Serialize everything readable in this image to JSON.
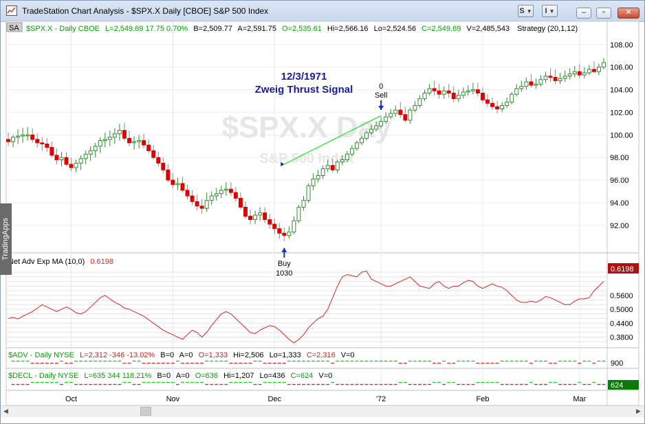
{
  "window": {
    "title": "TradeStation Chart Analysis - $SPX.X Daily [CBOE] S&P 500 Index",
    "btn_s": "S",
    "btn_i": "I",
    "minimize": "–",
    "restore": "▫",
    "close": "✕"
  },
  "side_tab": "TradingApps",
  "price_header": {
    "sa": "SA",
    "symbol": "$SPX.X - Daily  CBOE",
    "last": "L=2,549.69  17.75  0.70%",
    "bid": "B=2,509.77",
    "ask": "A=2,591.75",
    "open": "O=2,535.61",
    "high": "Hi=2,566.16",
    "low": "Lo=2,524.56",
    "close": "C=2,549.69",
    "volume": "V=2,485,543",
    "strategy": "Strategy (20,1,12)"
  },
  "watermark": {
    "symbol": "$SPX.X Day",
    "name": "S&P 500 Index"
  },
  "annotations": {
    "date": "12/3/1971",
    "signal": "Zweig Thrust Signal",
    "buy_label": "Buy",
    "buy_qty": "1030",
    "sell_label": "Sell",
    "sell_qty": "0"
  },
  "indicator_header": {
    "name": "Net Adv Exp MA (10,0)",
    "value": "0.6198"
  },
  "adv_header": {
    "symbol": "$ADV - Daily  NYSE",
    "last": "L=2,312  -346  -13.02%",
    "bid": "B=0",
    "ask": "A=0",
    "open": "O=1,333",
    "high": "Hi=2,506",
    "low": "Lo=1,333",
    "close": "C=2,316",
    "volume": "V=0"
  },
  "decl_header": {
    "symbol": "$DECL - Daily  NYSE",
    "last": "L=635  344  118.21%",
    "bid": "B=0",
    "ask": "A=0",
    "open": "O=636",
    "high": "Hi=1,207",
    "low": "Lo=436",
    "close": "C=624",
    "volume": "V=0"
  },
  "right_labels": {
    "indicator_last": "0.6198",
    "adv_axis": "900",
    "decl_last": "624"
  },
  "x_axis_labels": [
    "Oct",
    "Nov",
    "Dec",
    "'72",
    "Feb",
    "Mar"
  ],
  "colors": {
    "up_bar": "#2e8b2e",
    "down_bar": "#e00000",
    "indicator_line": "#e02020",
    "trade_line": "#33dd33",
    "annotation_text": "#1a1aa0",
    "symbol_green": "#00a000",
    "adv_green": "#22cc22",
    "decl_red": "#cc3333"
  },
  "chart_data": [
    {
      "type": "candlestick",
      "series": [
        {
          "name": "$SPX.X - Daily  CBOE"
        }
      ],
      "x": [
        "1971-09-14",
        "1971-09-15",
        "1971-09-16",
        "1971-09-17",
        "1971-09-20",
        "1971-09-21",
        "1971-09-22",
        "1971-09-23",
        "1971-09-24",
        "1971-09-27",
        "1971-09-28",
        "1971-09-29",
        "1971-09-30",
        "1971-10-01",
        "1971-10-04",
        "1971-10-05",
        "1971-10-06",
        "1971-10-07",
        "1971-10-08",
        "1971-10-11",
        "1971-10-12",
        "1971-10-13",
        "1971-10-14",
        "1971-10-15",
        "1971-10-18",
        "1971-10-19",
        "1971-10-20",
        "1971-10-21",
        "1971-10-22",
        "1971-10-25",
        "1971-10-26",
        "1971-10-27",
        "1971-10-28",
        "1971-10-29",
        "1971-11-01",
        "1971-11-02",
        "1971-11-03",
        "1971-11-04",
        "1971-11-05",
        "1971-11-08",
        "1971-11-09",
        "1971-11-10",
        "1971-11-11",
        "1971-11-12",
        "1971-11-15",
        "1971-11-16",
        "1971-11-17",
        "1971-11-18",
        "1971-11-19",
        "1971-11-22",
        "1971-11-23",
        "1971-11-24",
        "1971-11-26",
        "1971-11-29",
        "1971-11-30",
        "1971-12-01",
        "1971-12-02",
        "1971-12-03",
        "1971-12-06",
        "1971-12-07",
        "1971-12-08",
        "1971-12-09",
        "1971-12-10",
        "1971-12-13",
        "1971-12-14",
        "1971-12-15",
        "1971-12-16",
        "1971-12-17",
        "1971-12-20",
        "1971-12-21",
        "1971-12-22",
        "1971-12-23",
        "1971-12-27",
        "1971-12-28",
        "1971-12-29",
        "1971-12-30",
        "1971-12-31",
        "1972-01-03",
        "1972-01-04",
        "1972-01-05",
        "1972-01-06",
        "1972-01-07",
        "1972-01-10",
        "1972-01-11",
        "1972-01-12",
        "1972-01-13",
        "1972-01-14",
        "1972-01-17",
        "1972-01-18",
        "1972-01-19",
        "1972-01-20",
        "1972-01-21",
        "1972-01-24",
        "1972-01-25",
        "1972-01-26",
        "1972-01-27",
        "1972-01-28",
        "1972-01-31",
        "1972-02-01",
        "1972-02-02",
        "1972-02-03",
        "1972-02-04",
        "1972-02-07",
        "1972-02-08",
        "1972-02-09",
        "1972-02-10",
        "1972-02-11",
        "1972-02-14",
        "1972-02-15",
        "1972-02-16",
        "1972-02-17",
        "1972-02-18",
        "1972-02-22",
        "1972-02-23",
        "1972-02-24",
        "1972-02-25",
        "1972-02-28",
        "1972-02-29",
        "1972-03-01",
        "1972-03-02",
        "1972-03-03",
        "1972-03-06",
        "1972-03-07",
        "1972-03-08"
      ],
      "open": [
        99.6,
        99.4,
        99.8,
        99.9,
        100.0,
        100.0,
        99.6,
        99.3,
        99.2,
        98.9,
        98.2,
        97.8,
        98.0,
        97.4,
        97.1,
        97.5,
        97.9,
        98.3,
        98.6,
        99.0,
        99.5,
        99.6,
        99.8,
        100.1,
        100.4,
        99.7,
        99.3,
        99.4,
        99.5,
        99.1,
        98.6,
        98.0,
        97.5,
        96.9,
        96.0,
        95.6,
        95.7,
        95.1,
        94.6,
        94.1,
        93.7,
        93.5,
        94.2,
        94.6,
        94.8,
        95.1,
        95.2,
        94.9,
        94.4,
        93.6,
        92.8,
        92.5,
        92.9,
        93.1,
        92.5,
        92.1,
        91.7,
        91.3,
        91.1,
        91.4,
        92.4,
        93.6,
        94.2,
        95.5,
        96.1,
        96.4,
        97.0,
        97.3,
        96.9,
        97.6,
        97.8,
        98.3,
        98.8,
        99.3,
        99.7,
        100.2,
        100.5,
        100.8,
        101.2,
        101.6,
        101.9,
        102.2,
        101.8,
        101.3,
        102.2,
        102.6,
        103.2,
        103.7,
        104.1,
        103.9,
        103.6,
        103.9,
        103.7,
        103.2,
        103.5,
        103.8,
        103.9,
        104.0,
        103.7,
        103.1,
        102.8,
        102.5,
        102.3,
        102.6,
        102.9,
        103.6,
        104.1,
        104.3,
        104.7,
        104.4,
        104.5,
        104.9,
        105.2,
        105.1,
        104.8,
        105.0,
        105.2,
        105.4,
        105.6,
        105.3,
        105.5,
        105.8,
        105.6,
        106.0
      ],
      "high": [
        100.2,
        100.0,
        100.5,
        100.6,
        100.7,
        100.6,
        100.1,
        99.8,
        99.7,
        99.4,
        98.8,
        98.5,
        98.5,
        98.0,
        97.8,
        98.2,
        98.6,
        99.0,
        99.3,
        99.8,
        100.2,
        100.4,
        100.6,
        101.0,
        101.1,
        100.4,
        99.9,
        100.0,
        100.1,
        99.6,
        99.1,
        98.5,
        98.0,
        97.4,
        96.6,
        96.2,
        96.3,
        95.6,
        95.1,
        94.7,
        94.3,
        94.9,
        95.0,
        95.3,
        95.5,
        95.8,
        95.8,
        95.4,
        94.9,
        94.1,
        93.4,
        93.3,
        93.6,
        93.6,
        93.0,
        92.6,
        92.2,
        91.8,
        91.9,
        92.8,
        93.8,
        94.6,
        95.7,
        96.6,
        96.9,
        97.3,
        97.8,
        97.9,
        97.8,
        98.2,
        98.6,
        99.1,
        99.5,
        99.9,
        100.4,
        100.9,
        101.2,
        101.6,
        102.0,
        102.3,
        102.6,
        102.9,
        102.5,
        102.4,
        103.0,
        103.5,
        104.0,
        104.5,
        104.8,
        104.5,
        104.3,
        104.5,
        104.3,
        104.0,
        104.2,
        104.4,
        104.6,
        104.6,
        104.2,
        103.6,
        103.3,
        103.0,
        102.9,
        103.3,
        103.8,
        104.5,
        104.8,
        105.1,
        105.4,
        105.0,
        105.3,
        105.6,
        105.9,
        105.8,
        105.5,
        105.7,
        105.9,
        106.1,
        106.3,
        106.0,
        106.2,
        106.5,
        106.3,
        106.8
      ],
      "low": [
        99.0,
        98.9,
        99.2,
        99.3,
        99.5,
        99.3,
        98.9,
        98.6,
        98.5,
        98.0,
        97.4,
        97.2,
        97.2,
        96.8,
        96.7,
        96.9,
        97.4,
        97.7,
        98.0,
        98.4,
        98.9,
        99.0,
        99.2,
        99.5,
        99.5,
        99.0,
        98.7,
        98.8,
        98.8,
        98.4,
        97.8,
        97.2,
        96.6,
        95.8,
        95.3,
        95.1,
        94.9,
        94.3,
        93.8,
        93.3,
        93.0,
        93.2,
        93.8,
        94.2,
        94.4,
        94.6,
        94.6,
        94.1,
        93.4,
        92.6,
        92.1,
        92.1,
        92.4,
        92.2,
        91.7,
        91.2,
        90.8,
        90.6,
        90.8,
        91.2,
        92.2,
        93.3,
        94.0,
        95.1,
        95.8,
        96.1,
        96.7,
        96.7,
        96.6,
        97.3,
        97.6,
        98.1,
        98.6,
        99.1,
        99.5,
        100.0,
        100.3,
        100.6,
        101.0,
        101.4,
        101.6,
        101.5,
        101.1,
        101.0,
        102.0,
        102.4,
        103.0,
        103.5,
        103.5,
        103.2,
        103.2,
        103.3,
        102.9,
        102.9,
        103.2,
        103.5,
        103.6,
        103.4,
        102.8,
        102.5,
        102.2,
        101.9,
        102.0,
        102.4,
        102.7,
        103.4,
        103.8,
        104.0,
        104.2,
        104.1,
        104.3,
        104.6,
        104.7,
        104.5,
        104.5,
        104.7,
        104.9,
        105.1,
        105.0,
        105.0,
        105.3,
        105.5,
        105.3,
        105.8
      ],
      "close": [
        99.4,
        99.8,
        99.9,
        100.0,
        100.0,
        99.6,
        99.3,
        99.2,
        98.9,
        98.2,
        97.8,
        98.0,
        97.4,
        97.1,
        97.5,
        97.9,
        98.3,
        98.6,
        99.0,
        99.5,
        99.6,
        99.8,
        100.1,
        100.4,
        99.7,
        99.3,
        99.4,
        99.5,
        99.1,
        98.6,
        98.0,
        97.5,
        96.9,
        96.0,
        95.6,
        95.7,
        95.1,
        94.6,
        94.1,
        93.7,
        93.5,
        94.2,
        94.6,
        94.8,
        95.1,
        95.2,
        94.9,
        94.4,
        93.6,
        92.8,
        92.5,
        92.9,
        93.1,
        92.5,
        92.1,
        91.7,
        91.3,
        91.1,
        91.4,
        92.4,
        93.6,
        94.2,
        95.5,
        96.1,
        96.4,
        97.0,
        97.3,
        96.9,
        97.6,
        97.8,
        98.3,
        98.8,
        99.3,
        99.7,
        100.2,
        100.5,
        100.8,
        101.2,
        101.6,
        101.9,
        102.2,
        101.8,
        101.3,
        102.2,
        102.6,
        103.2,
        103.7,
        104.1,
        103.9,
        103.6,
        103.9,
        103.7,
        103.2,
        103.5,
        103.8,
        103.9,
        104.0,
        103.7,
        103.1,
        102.8,
        102.5,
        102.3,
        102.6,
        102.9,
        103.6,
        104.1,
        104.3,
        104.7,
        104.4,
        104.5,
        104.9,
        105.2,
        105.1,
        104.8,
        105.0,
        105.2,
        105.4,
        105.6,
        105.3,
        105.5,
        105.8,
        105.6,
        106.0,
        106.4
      ],
      "y_ticks": [
        "92.00",
        "94.00",
        "96.00",
        "98.00",
        "100.00",
        "102.00",
        "104.00",
        "106.00",
        "108.00"
      ],
      "ylim": [
        89.8,
        108.9
      ],
      "trades": [
        {
          "label": "Buy",
          "qty": "1030",
          "x": "1971-12-03",
          "price": 97.4
        },
        {
          "label": "Sell",
          "qty": "0",
          "x": "1972-01-03",
          "price": 101.7
        }
      ]
    },
    {
      "type": "line",
      "series": [
        {
          "name": "Net Adv Exp MA (10,0)"
        }
      ],
      "values": [
        0.46,
        0.465,
        0.458,
        0.47,
        0.48,
        0.49,
        0.505,
        0.52,
        0.51,
        0.5,
        0.49,
        0.5,
        0.51,
        0.5,
        0.485,
        0.48,
        0.49,
        0.51,
        0.53,
        0.55,
        0.56,
        0.545,
        0.53,
        0.52,
        0.505,
        0.5,
        0.49,
        0.48,
        0.47,
        0.455,
        0.44,
        0.425,
        0.41,
        0.4,
        0.39,
        0.38,
        0.37,
        0.39,
        0.41,
        0.4,
        0.38,
        0.4,
        0.43,
        0.455,
        0.48,
        0.49,
        0.48,
        0.46,
        0.44,
        0.42,
        0.4,
        0.395,
        0.41,
        0.42,
        0.43,
        0.425,
        0.41,
        0.39,
        0.37,
        0.355,
        0.37,
        0.39,
        0.42,
        0.44,
        0.46,
        0.47,
        0.5,
        0.55,
        0.6,
        0.64,
        0.65,
        0.645,
        0.64,
        0.66,
        0.665,
        0.63,
        0.62,
        0.61,
        0.6,
        0.6,
        0.61,
        0.62,
        0.63,
        0.64,
        0.62,
        0.6,
        0.595,
        0.59,
        0.61,
        0.62,
        0.6,
        0.59,
        0.6,
        0.6,
        0.615,
        0.625,
        0.62,
        0.6,
        0.59,
        0.6,
        0.61,
        0.6,
        0.595,
        0.58,
        0.56,
        0.54,
        0.53,
        0.53,
        0.535,
        0.53,
        0.54,
        0.555,
        0.55,
        0.54,
        0.53,
        0.52,
        0.52,
        0.535,
        0.545,
        0.545,
        0.55,
        0.58,
        0.6,
        0.62
      ],
      "y_ticks": [
        "0.3800",
        "0.4400",
        "0.5000",
        "0.5600"
      ],
      "ylim": [
        0.34,
        0.69
      ]
    }
  ]
}
